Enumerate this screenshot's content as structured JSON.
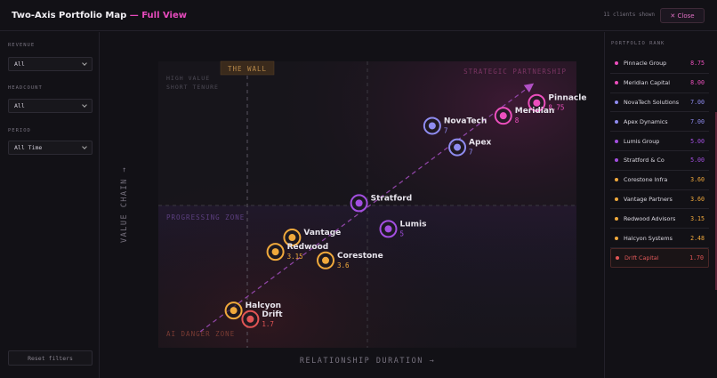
{
  "header": {
    "title_main": "Two-Axis Portfolio Map",
    "title_accent": "— Full View",
    "clients_shown": "11 clients shown",
    "close_label": "✕ Close"
  },
  "filters": [
    {
      "label": "REVENUE",
      "value": "All"
    },
    {
      "label": "HEADCOUNT",
      "value": "All"
    },
    {
      "label": "PERIOD",
      "value": "All Time"
    }
  ],
  "reset_label": "Reset filters",
  "right_panel": {
    "heading": "PORTFOLIO RANK"
  },
  "ranking": [
    {
      "name": "Pinnacle Group",
      "score": "8.75",
      "color": "#ec4fbd"
    },
    {
      "name": "Meridian Capital",
      "score": "8.00",
      "color": "#ec4fbd"
    },
    {
      "name": "NovaTech Solutions",
      "score": "7.00",
      "color": "#8f8cf0"
    },
    {
      "name": "Apex Dynamics",
      "score": "7.00",
      "color": "#8f8cf0"
    },
    {
      "name": "Lumis Group",
      "score": "5.00",
      "color": "#a34fe0"
    },
    {
      "name": "Stratford & Co",
      "score": "5.00",
      "color": "#a34fe0"
    },
    {
      "name": "Corestone Infra",
      "score": "3.60",
      "color": "#f0a93c"
    },
    {
      "name": "Vantage Partners",
      "score": "3.60",
      "color": "#f0a93c"
    },
    {
      "name": "Redwood Advisors",
      "score": "3.15",
      "color": "#f0a93c"
    },
    {
      "name": "Halcyon Systems",
      "score": "2.48",
      "color": "#f0a93c"
    },
    {
      "name": "Drift Capital",
      "score": "1.70",
      "color": "#e25555",
      "selected": true
    }
  ],
  "chart_data": {
    "type": "scatter",
    "xlabel": "RELATIONSHIP DURATION →",
    "ylabel": "VALUE CHAIN →",
    "zones": {
      "top_left": [
        "HIGH VALUE",
        "SHORT TENURE"
      ],
      "top_right": "STRATEGIC PARTNERSHIP",
      "middle_left": "PROGRESSING ZONE",
      "bottom_left": "AI DANGER ZONE",
      "wall": "THE WALL"
    },
    "points": [
      {
        "name": "Pinnacle",
        "value": "8.75",
        "x": 0.905,
        "y": 0.855,
        "color": "#ec4fbd"
      },
      {
        "name": "Meridian",
        "value": "8",
        "x": 0.825,
        "y": 0.81,
        "color": "#ec4fbd"
      },
      {
        "name": "NovaTech",
        "value": "7",
        "x": 0.655,
        "y": 0.775,
        "color": "#8f8cf0"
      },
      {
        "name": "Apex",
        "value": "7",
        "x": 0.715,
        "y": 0.7,
        "color": "#8f8cf0"
      },
      {
        "name": "Stratford",
        "value": "",
        "x": 0.48,
        "y": 0.505,
        "color": "#a34fe0"
      },
      {
        "name": "Lumis",
        "value": "5",
        "x": 0.55,
        "y": 0.415,
        "color": "#a34fe0"
      },
      {
        "name": "Vantage",
        "value": "",
        "x": 0.32,
        "y": 0.385,
        "color": "#f0a93c"
      },
      {
        "name": "Redwood",
        "value": "3.15",
        "x": 0.28,
        "y": 0.335,
        "color": "#f0a93c"
      },
      {
        "name": "Corestone",
        "value": "3.6",
        "x": 0.4,
        "y": 0.305,
        "color": "#f0a93c"
      },
      {
        "name": "Halcyon",
        "value": "",
        "x": 0.18,
        "y": 0.13,
        "color": "#f0a93c"
      },
      {
        "name": "Drift",
        "value": "1.7",
        "x": 0.22,
        "y": 0.1,
        "color": "#e25555"
      }
    ]
  }
}
